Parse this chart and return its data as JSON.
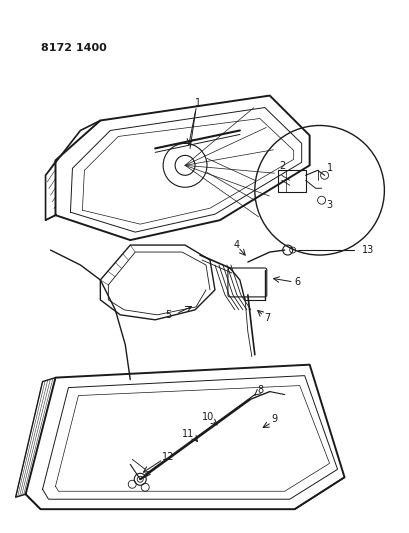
{
  "title_code": "8172 1400",
  "bg": "#ffffff",
  "lc": "#1a1a1a",
  "fig_w": 4.1,
  "fig_h": 5.33,
  "dpi": 100
}
